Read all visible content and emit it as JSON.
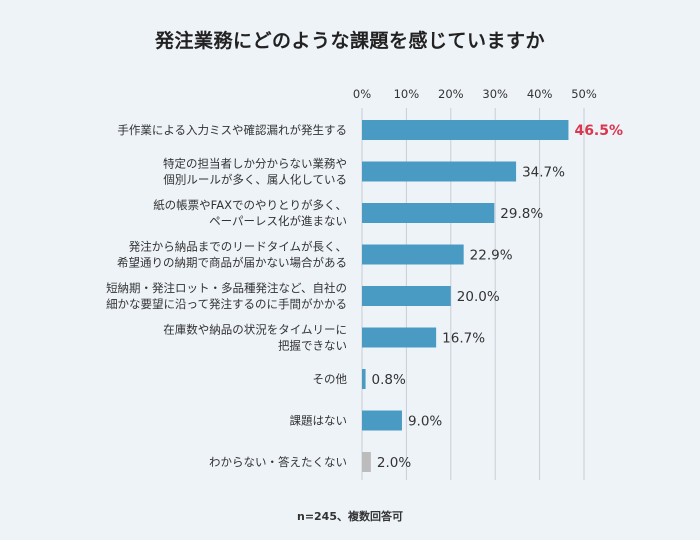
{
  "chart_data": {
    "type": "bar",
    "orientation": "horizontal",
    "title": "発注業務にどのような課題を感じていますか",
    "note": "n=245、複数回答可",
    "unit": "%",
    "xlim": [
      0,
      50
    ],
    "ticks": [
      "0%",
      "10%",
      "20%",
      "30%",
      "40%",
      "50%"
    ],
    "tick_values": [
      0,
      10,
      20,
      30,
      40,
      50
    ],
    "categories": [
      [
        "手作業による入力ミスや確認漏れが発生する"
      ],
      [
        "特定の担当者しか分からない業務や",
        "個別ルールが多く、属人化している"
      ],
      [
        "紙の帳票やFAXでのやりとりが多く、",
        "ペーパーレス化が進まない"
      ],
      [
        "発注から納品までのリードタイムが長く、",
        "希望通りの納期で商品が届かない場合がある"
      ],
      [
        "短納期・発注ロット・多品種発注など、自社の",
        "細かな要望に沿って発注するのに手間がかかる"
      ],
      [
        "在庫数や納品の状況をタイムリーに",
        "把握できない"
      ],
      [
        "その他"
      ],
      [
        "課題はない"
      ],
      [
        "わからない・答えたくない"
      ]
    ],
    "values": [
      46.5,
      34.7,
      29.8,
      22.9,
      20.0,
      16.7,
      0.8,
      9.0,
      2.0
    ],
    "value_labels": [
      "46.5%",
      "34.7%",
      "29.8%",
      "22.9%",
      "20.0%",
      "16.7%",
      "0.8%",
      "9.0%",
      "2.0%"
    ],
    "highlight_index": 0,
    "gray_index": 8,
    "colors": {
      "bar": "#4a9bc4",
      "bar_gray": "#bcbcbc",
      "highlight_text": "#d9364f",
      "grid": "#c8ced6",
      "text": "#333333"
    }
  }
}
